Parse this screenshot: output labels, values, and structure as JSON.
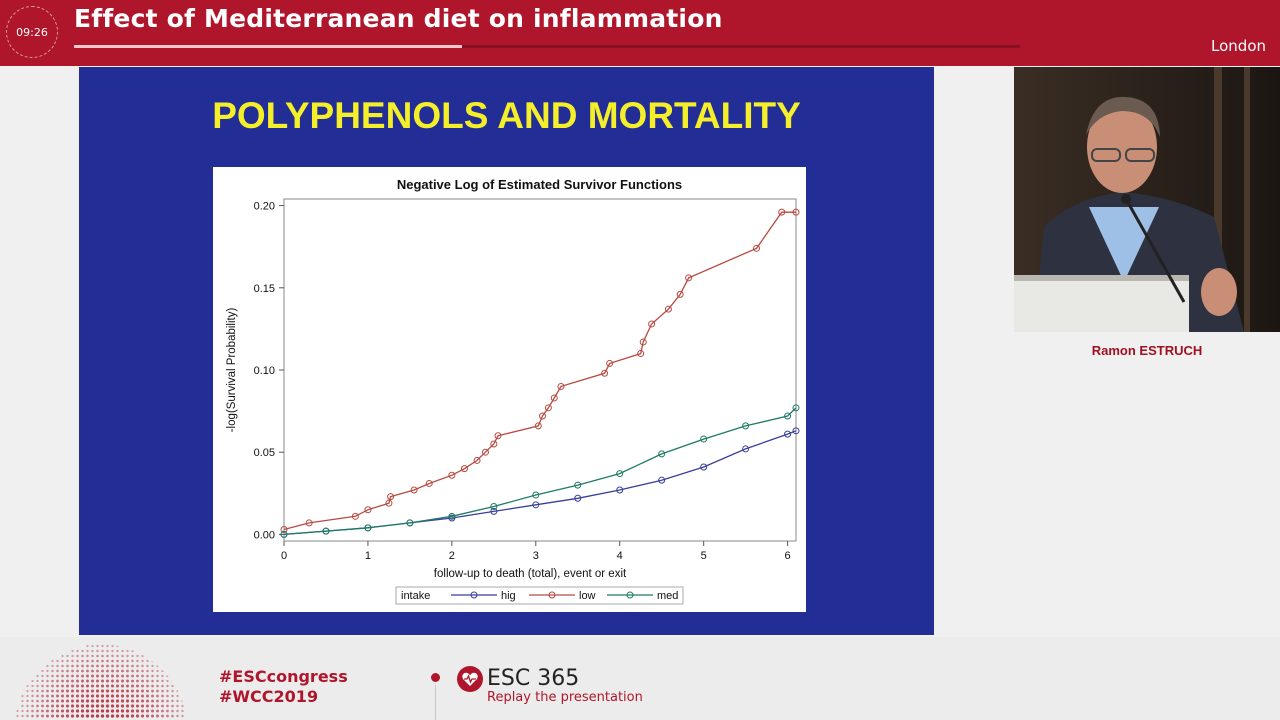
{
  "header": {
    "timer": "09:26",
    "title": "Effect of Mediterranean diet on inflammation",
    "location": "London",
    "progress_fraction": 0.41
  },
  "slide": {
    "title": "POLYPHENOLS AND MORTALITY"
  },
  "speaker": {
    "name": "Ramon ESTRUCH"
  },
  "footer": {
    "hashtag1": "#ESCcongress",
    "hashtag2": "#WCC2019",
    "brand": "ESC 365",
    "replay": "Replay the presentation"
  },
  "colors": {
    "brand_red": "#b0162b",
    "slide_bg": "#232d96",
    "slide_title": "#f5ef2a",
    "series_hig": "#3a3f9a",
    "series_low": "#b84a40",
    "series_med": "#1f7a66"
  },
  "chart_data": {
    "type": "line",
    "title": "Negative Log of Estimated Survivor Functions",
    "xlabel": "follow-up to death (total), event or exit",
    "ylabel": "-log(Survival Probability)",
    "xlim": [
      0,
      6.1
    ],
    "ylim": [
      -0.004,
      0.204
    ],
    "x_ticks": [
      "0",
      "1",
      "2",
      "3",
      "4",
      "5",
      "6"
    ],
    "y_ticks": [
      "0.00",
      "0.05",
      "0.10",
      "0.15",
      "0.20"
    ],
    "legend_title": "intake",
    "legend_position": "bottom",
    "series": [
      {
        "name": "hig",
        "color": "#3a3f9a",
        "x": [
          0,
          0.5,
          1.0,
          1.5,
          2.0,
          2.5,
          3.0,
          3.5,
          4.0,
          4.5,
          5.0,
          5.5,
          6.0,
          6.1
        ],
        "y": [
          0,
          0.002,
          0.004,
          0.007,
          0.01,
          0.014,
          0.018,
          0.022,
          0.027,
          0.033,
          0.041,
          0.052,
          0.061,
          0.063
        ]
      },
      {
        "name": "low",
        "color": "#b84a40",
        "x": [
          0,
          0.3,
          0.85,
          1.0,
          1.25,
          1.27,
          1.55,
          1.73,
          2.0,
          2.15,
          2.3,
          2.4,
          2.5,
          2.55,
          3.03,
          3.08,
          3.15,
          3.22,
          3.3,
          3.82,
          3.88,
          4.25,
          4.28,
          4.38,
          4.58,
          4.72,
          4.82,
          5.63,
          5.93,
          6.1
        ],
        "y": [
          0.003,
          0.007,
          0.011,
          0.015,
          0.019,
          0.023,
          0.027,
          0.031,
          0.036,
          0.04,
          0.045,
          0.05,
          0.055,
          0.06,
          0.066,
          0.072,
          0.077,
          0.083,
          0.09,
          0.098,
          0.104,
          0.11,
          0.117,
          0.128,
          0.137,
          0.146,
          0.156,
          0.174,
          0.196,
          0.196
        ]
      },
      {
        "name": "med",
        "color": "#1f7a66",
        "x": [
          0,
          0.5,
          1.0,
          1.5,
          2.0,
          2.5,
          3.0,
          3.5,
          4.0,
          4.5,
          5.0,
          5.5,
          6.0,
          6.1
        ],
        "y": [
          0,
          0.002,
          0.004,
          0.007,
          0.011,
          0.017,
          0.024,
          0.03,
          0.037,
          0.049,
          0.058,
          0.066,
          0.072,
          0.077
        ]
      }
    ]
  }
}
